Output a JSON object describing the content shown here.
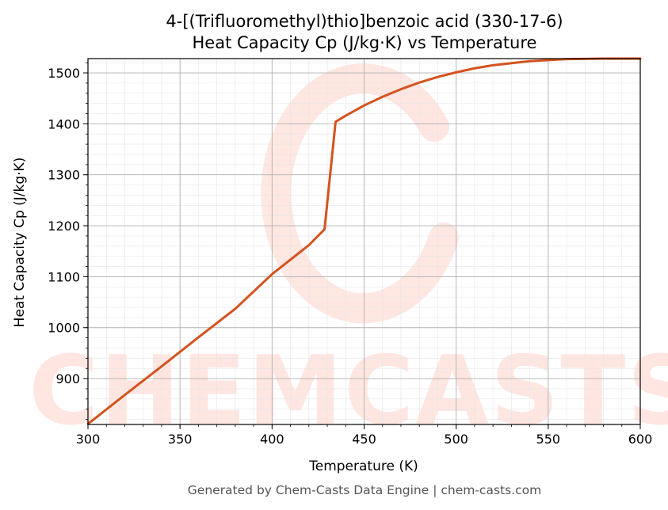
{
  "chart_data": {
    "type": "line",
    "title_line1": "4-[(Trifluoromethyl)thio]benzoic acid (330-17-6)",
    "title_line2": "Heat Capacity Cp (J/kg·K) vs Temperature",
    "xlabel": "Temperature (K)",
    "ylabel": "Heat Capacity Cp (J/kg·K)",
    "xlim": [
      300,
      600
    ],
    "ylim": [
      810,
      1528
    ],
    "xticks": [
      300,
      350,
      400,
      450,
      500,
      550,
      600
    ],
    "yticks": [
      900,
      1000,
      1100,
      1200,
      1300,
      1400,
      1500
    ],
    "grid": true,
    "series": [
      {
        "color": "#d4531f",
        "x": [
          300,
          320,
          340,
          360,
          380,
          400,
          420,
          428.5,
          434.5,
          440,
          450,
          460,
          470,
          480,
          490,
          500,
          510,
          520,
          530,
          540,
          550,
          560,
          570,
          580,
          590,
          600
        ],
        "y": [
          811,
          868,
          924,
          981,
          1037,
          1105,
          1162,
          1193,
          1404,
          1416,
          1436,
          1453,
          1468,
          1481,
          1492,
          1501,
          1509,
          1515,
          1519,
          1523,
          1525,
          1527,
          1527.5,
          1528,
          1528,
          1528
        ]
      }
    ]
  },
  "watermark": "CHEMCASTS",
  "footer": "Generated by Chem-Casts Data Engine | chem-casts.com"
}
